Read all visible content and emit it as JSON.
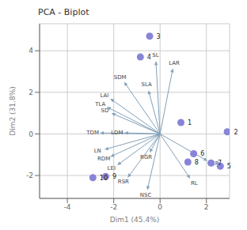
{
  "chart_data": {
    "type": "scatter",
    "title": "PCA - Biplot",
    "xlabel": "Dim1 (45.4%)",
    "ylabel": "Dim2 (31.8%)",
    "xlim": [
      -5.2,
      3.0
    ],
    "ylim": [
      -3.1,
      5.3
    ],
    "xticks": [
      -4,
      -2,
      0,
      2
    ],
    "yticks": [
      -2,
      0,
      2,
      4
    ],
    "grid": true,
    "points": [
      {
        "label": "1",
        "x": 0.9,
        "y": 0.55
      },
      {
        "label": "2",
        "x": 2.9,
        "y": 0.1
      },
      {
        "label": "3",
        "x": -0.45,
        "y": 4.7
      },
      {
        "label": "4",
        "x": -0.85,
        "y": 3.7
      },
      {
        "label": "5",
        "x": 2.6,
        "y": -1.55
      },
      {
        "label": "6",
        "x": 1.45,
        "y": -0.95
      },
      {
        "label": "7",
        "x": 2.2,
        "y": -1.4
      },
      {
        "label": "8",
        "x": 1.2,
        "y": -1.35
      },
      {
        "label": "9",
        "x": -2.35,
        "y": -2.05
      },
      {
        "label": "10",
        "x": -2.9,
        "y": -2.1
      }
    ],
    "arrows": [
      {
        "label": "SL",
        "x": -0.18,
        "y": 3.5
      },
      {
        "label": "LAR",
        "x": 0.55,
        "y": 3.15
      },
      {
        "label": "SLA",
        "x": -0.5,
        "y": 2.1
      },
      {
        "label": "SDM",
        "x": -1.55,
        "y": 2.5
      },
      {
        "label": "LAI",
        "x": -2.15,
        "y": 1.7
      },
      {
        "label": "TLA",
        "x": -2.3,
        "y": 1.3
      },
      {
        "label": "SD",
        "x": -2.1,
        "y": 1.0
      },
      {
        "label": "TDM",
        "x": -2.6,
        "y": 0.05
      },
      {
        "label": "LDM",
        "x": -1.55,
        "y": 0.05
      },
      {
        "label": "LN",
        "x": -2.4,
        "y": -0.75
      },
      {
        "label": "RDM",
        "x": -2.15,
        "y": -1.1
      },
      {
        "label": "LEI",
        "x": -1.85,
        "y": -1.5
      },
      {
        "label": "RSR",
        "x": -1.4,
        "y": -2.1
      },
      {
        "label": "NSC",
        "x": -0.55,
        "y": -2.7
      },
      {
        "label": "RGR",
        "x": -0.45,
        "y": -0.9
      },
      {
        "label": "RL",
        "x": 1.3,
        "y": -2.15
      },
      {
        "label": "LER",
        "x": 2.05,
        "y": -1.3
      }
    ]
  }
}
